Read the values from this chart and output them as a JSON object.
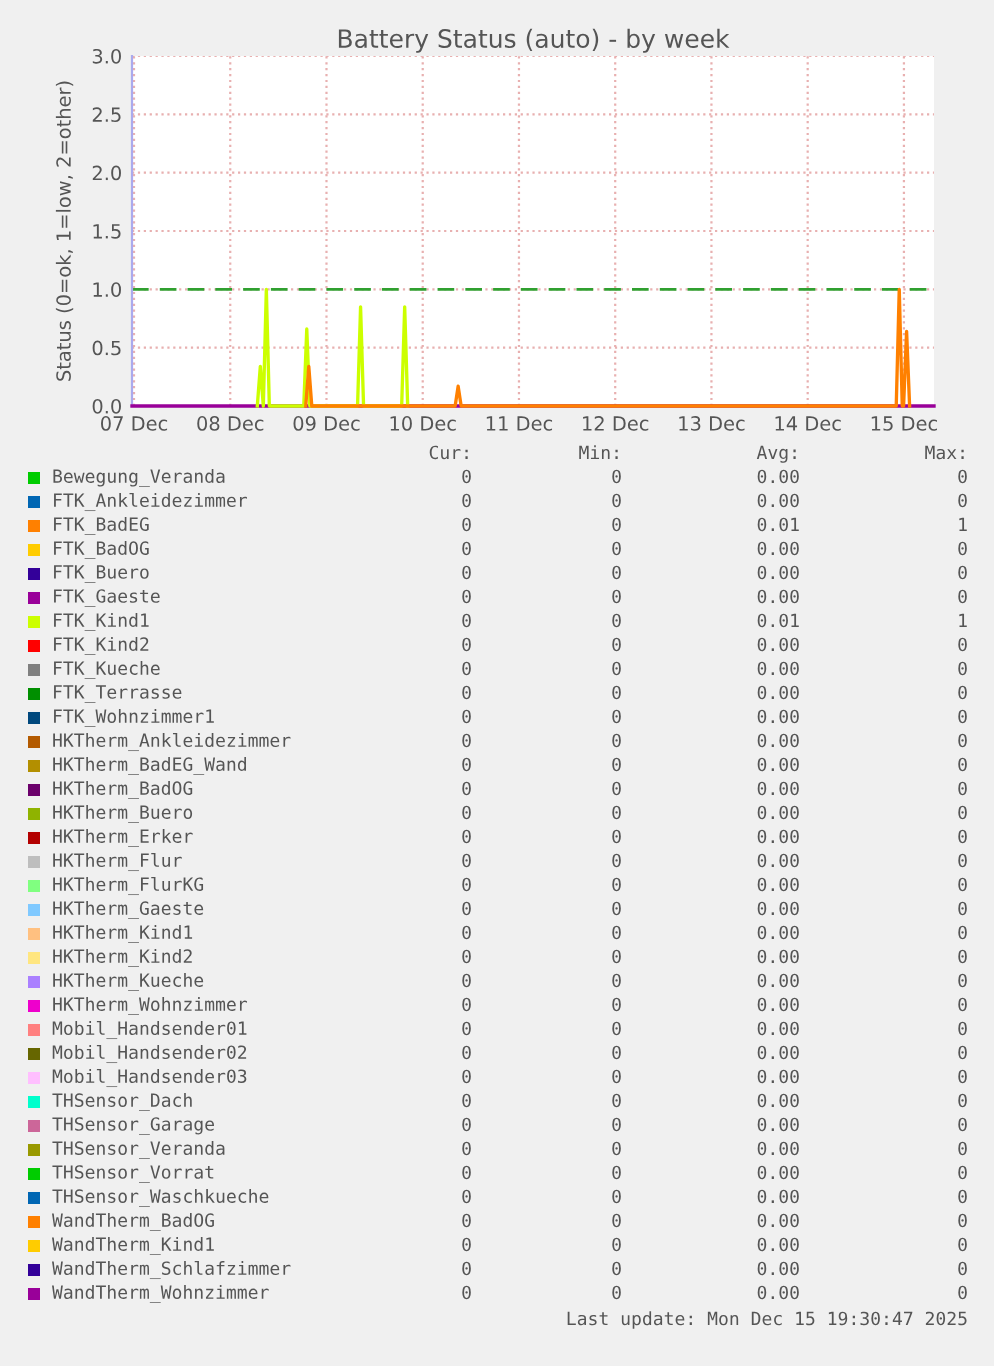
{
  "chart_data": {
    "type": "line",
    "title": "Battery Status (auto) - by week",
    "ylabel": "Status (0=ok, 1=low, 2=other)",
    "xlim": [
      "2025-12-07T11:30",
      "2025-12-15T19:30"
    ],
    "xticks": [
      {
        "value": "2025-12-07T12:00",
        "label": "07 Dec"
      },
      {
        "value": "2025-12-08T12:00",
        "label": "08 Dec"
      },
      {
        "value": "2025-12-09T12:00",
        "label": "09 Dec"
      },
      {
        "value": "2025-12-10T12:00",
        "label": "10 Dec"
      },
      {
        "value": "2025-12-11T12:00",
        "label": "11 Dec"
      },
      {
        "value": "2025-12-12T12:00",
        "label": "12 Dec"
      },
      {
        "value": "2025-12-13T12:00",
        "label": "13 Dec"
      },
      {
        "value": "2025-12-14T12:00",
        "label": "14 Dec"
      },
      {
        "value": "2025-12-15T12:00",
        "label": "15 Dec"
      }
    ],
    "ylim": [
      0,
      3
    ],
    "yticks": [
      {
        "value": 0,
        "label": "0.0"
      },
      {
        "value": 0.5,
        "label": "0.5"
      },
      {
        "value": 1,
        "label": "1.0"
      },
      {
        "value": 1.5,
        "label": "1.5"
      },
      {
        "value": 2,
        "label": "2.0"
      },
      {
        "value": 2.5,
        "label": "2.5"
      },
      {
        "value": 3,
        "label": "3.0"
      }
    ],
    "grid": true,
    "legend": "bottom",
    "ref_lines": [
      {
        "axis": "y",
        "value": 1,
        "color": "#30a030",
        "line_style": "dashed"
      }
    ],
    "series": [
      {
        "name": "Bewegung_Veranda",
        "color": "#00cc00"
      },
      {
        "name": "FTK_Ankleidezimmer",
        "color": "#0066b3"
      },
      {
        "name": "FTK_BadEG",
        "color": "#ff8000",
        "x": [
          "2025-12-09T06:50",
          "2025-12-09T07:35",
          "2025-12-09T08:20",
          "2025-12-10T20:05",
          "2025-12-10T20:50",
          "2025-12-10T21:35",
          "2025-12-15T10:05",
          "2025-12-15T10:50",
          "2025-12-15T11:35",
          "2025-12-15T11:55",
          "2025-12-15T12:40",
          "2025-12-15T13:25"
        ],
        "values": [
          0,
          0.34,
          0,
          0,
          0.17,
          0,
          0,
          1.0,
          0,
          0,
          0.64,
          0
        ]
      },
      {
        "name": "FTK_BadOG",
        "color": "#ffcc00"
      },
      {
        "name": "FTK_Buero",
        "color": "#330099"
      },
      {
        "name": "FTK_Gaeste",
        "color": "#990099"
      },
      {
        "name": "FTK_Kind1",
        "color": "#ccff00",
        "x": [
          "2025-12-08T18:45",
          "2025-12-08T19:30",
          "2025-12-08T20:15",
          "2025-12-08T21:00",
          "2025-12-08T21:45",
          "2025-12-09T06:20",
          "2025-12-09T07:05",
          "2025-12-09T07:50",
          "2025-12-09T19:45",
          "2025-12-09T20:30",
          "2025-12-09T21:15",
          "2025-12-10T06:45",
          "2025-12-10T07:30",
          "2025-12-10T08:15"
        ],
        "values": [
          0,
          0.34,
          0,
          1.0,
          0,
          0,
          0.66,
          0,
          0,
          0.85,
          0,
          0,
          0.85,
          0
        ]
      },
      {
        "name": "FTK_Kind2",
        "color": "#ff0000"
      },
      {
        "name": "FTK_Kueche",
        "color": "#808080"
      },
      {
        "name": "FTK_Terrasse",
        "color": "#008f00"
      },
      {
        "name": "FTK_Wohnzimmer1",
        "color": "#00487d"
      },
      {
        "name": "HKTherm_Ankleidezimmer",
        "color": "#b35a00"
      },
      {
        "name": "HKTherm_BadEG_Wand",
        "color": "#b38f00"
      },
      {
        "name": "HKTherm_BadOG",
        "color": "#6b006b"
      },
      {
        "name": "HKTherm_Buero",
        "color": "#8fb300"
      },
      {
        "name": "HKTherm_Erker",
        "color": "#b30000"
      },
      {
        "name": "HKTherm_Flur",
        "color": "#bebebe"
      },
      {
        "name": "HKTherm_FlurKG",
        "color": "#80ff80"
      },
      {
        "name": "HKTherm_Gaeste",
        "color": "#80c9ff"
      },
      {
        "name": "HKTherm_Kind1",
        "color": "#ffc080"
      },
      {
        "name": "HKTherm_Kind2",
        "color": "#ffe680"
      },
      {
        "name": "HKTherm_Kueche",
        "color": "#aa80ff"
      },
      {
        "name": "HKTherm_Wohnzimmer",
        "color": "#ee00cc"
      },
      {
        "name": "Mobil_Handsender01",
        "color": "#ff8080"
      },
      {
        "name": "Mobil_Handsender02",
        "color": "#666600"
      },
      {
        "name": "Mobil_Handsender03",
        "color": "#ffbfff"
      },
      {
        "name": "THSensor_Dach",
        "color": "#00ffcc"
      },
      {
        "name": "THSensor_Garage",
        "color": "#cc6699"
      },
      {
        "name": "THSensor_Veranda",
        "color": "#999900"
      },
      {
        "name": "THSensor_Vorrat",
        "color": "#00cc00"
      },
      {
        "name": "THSensor_Waschkueche",
        "color": "#0066b3"
      },
      {
        "name": "WandTherm_BadOG",
        "color": "#ff8000"
      },
      {
        "name": "WandTherm_Kind1",
        "color": "#ffcc00"
      },
      {
        "name": "WandTherm_Schlafzimmer",
        "color": "#330099"
      },
      {
        "name": "WandTherm_Wohnzimmer",
        "color": "#990099",
        "x": [
          "2025-12-07T11:30",
          "2025-12-15T19:30"
        ],
        "values": [
          0,
          0
        ]
      }
    ],
    "annotations": [
      "Cur:",
      "Min:",
      "Avg:",
      "Max:",
      "0",
      "0",
      "0.00",
      "0",
      "0",
      "0",
      "0.00",
      "0",
      "0",
      "0",
      "0.01",
      "1",
      "0",
      "0",
      "0.00",
      "0",
      "0",
      "0",
      "0.00",
      "0",
      "0",
      "0",
      "0.00",
      "0",
      "0",
      "0",
      "0.01",
      "1",
      "0",
      "0",
      "0.00",
      "0",
      "0",
      "0",
      "0.00",
      "0",
      "0",
      "0",
      "0.00",
      "0",
      "0",
      "0",
      "0.00",
      "0",
      "0",
      "0",
      "0.00",
      "0",
      "0",
      "0",
      "0.00",
      "0",
      "0",
      "0",
      "0.00",
      "0",
      "0",
      "0",
      "0.00",
      "0",
      "0",
      "0",
      "0.00",
      "0",
      "0",
      "0",
      "0.00",
      "0",
      "0",
      "0",
      "0.00",
      "0",
      "0",
      "0",
      "0.00",
      "0",
      "0",
      "0",
      "0.00",
      "0",
      "0",
      "0",
      "0.00",
      "0",
      "0",
      "0",
      "0.00",
      "0",
      "0",
      "0",
      "0.00",
      "0",
      "0",
      "0",
      "0.00",
      "0",
      "0",
      "0",
      "0.00",
      "0",
      "0",
      "0",
      "0.00",
      "0",
      "0",
      "0",
      "0.00",
      "0",
      "0",
      "0",
      "0.00",
      "0",
      "0",
      "0",
      "0.00",
      "0",
      "0",
      "0",
      "0.00",
      "0",
      "0",
      "0",
      "0.00",
      "0",
      "0",
      "0",
      "0.00",
      "0",
      "0",
      "0",
      "0.00",
      "0",
      "0",
      "0",
      "0.00",
      "0",
      "0",
      "0",
      "0.00",
      "0",
      "Last update: Mon Dec 15 19:30:47 2025"
    ]
  }
}
